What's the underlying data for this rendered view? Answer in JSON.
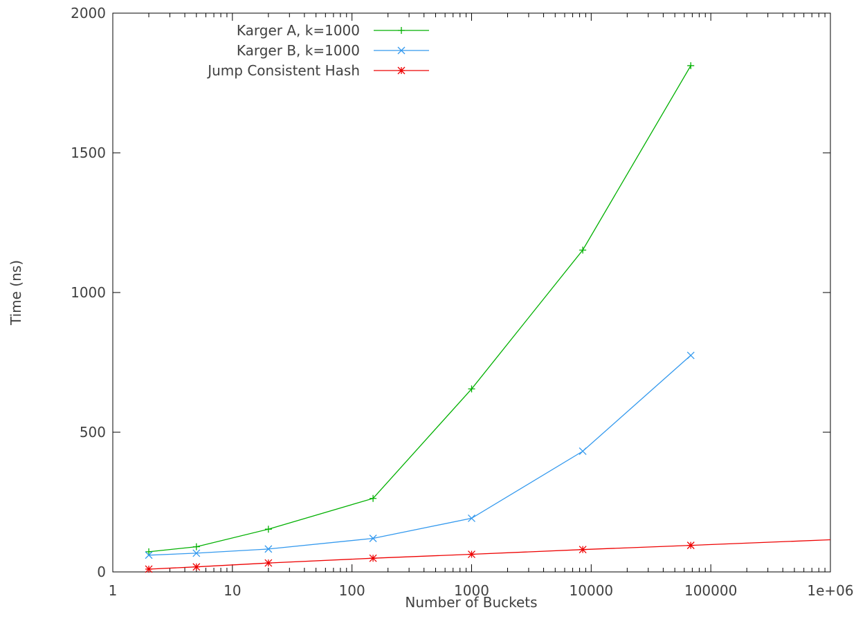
{
  "chart_data": {
    "type": "line",
    "title": "",
    "xlabel": "Number of Buckets",
    "ylabel": "Time (ns)",
    "x_scale": "log",
    "xlim": [
      1,
      1000000
    ],
    "ylim": [
      0,
      2000
    ],
    "x_ticks": [
      1,
      10,
      100,
      1000,
      10000,
      100000,
      1000000
    ],
    "x_tick_labels": [
      "1",
      "10",
      "100",
      "1000",
      "10000",
      "100000",
      "1e+06"
    ],
    "y_ticks": [
      0,
      500,
      1000,
      1500,
      2000
    ],
    "y_tick_labels": [
      "0",
      "500",
      "1000",
      "1500",
      "2000"
    ],
    "grid": false,
    "legend_position": "top-left",
    "series": [
      {
        "name": "Karger A, k=1000",
        "color": "#00b000",
        "marker": "plus",
        "x": [
          2,
          5,
          20,
          150,
          1000,
          8500,
          68000
        ],
        "y": [
          72,
          90,
          153,
          263,
          655,
          1152,
          1812
        ]
      },
      {
        "name": "Karger B, k=1000",
        "color": "#3399ee",
        "marker": "cross",
        "x": [
          2,
          5,
          20,
          150,
          1000,
          8500,
          68000
        ],
        "y": [
          60,
          67,
          82,
          120,
          192,
          432,
          775
        ]
      },
      {
        "name": "Jump Consistent Hash",
        "color": "#ee0000",
        "marker": "star",
        "x": [
          2,
          5,
          20,
          150,
          1000,
          8500,
          68000
        ],
        "y": [
          10,
          18,
          32,
          49,
          63,
          80,
          95
        ]
      },
      {
        "name": "",
        "color": "#ee0000",
        "marker": "none",
        "x": [
          68000,
          1000000
        ],
        "y": [
          95,
          115
        ]
      }
    ]
  }
}
